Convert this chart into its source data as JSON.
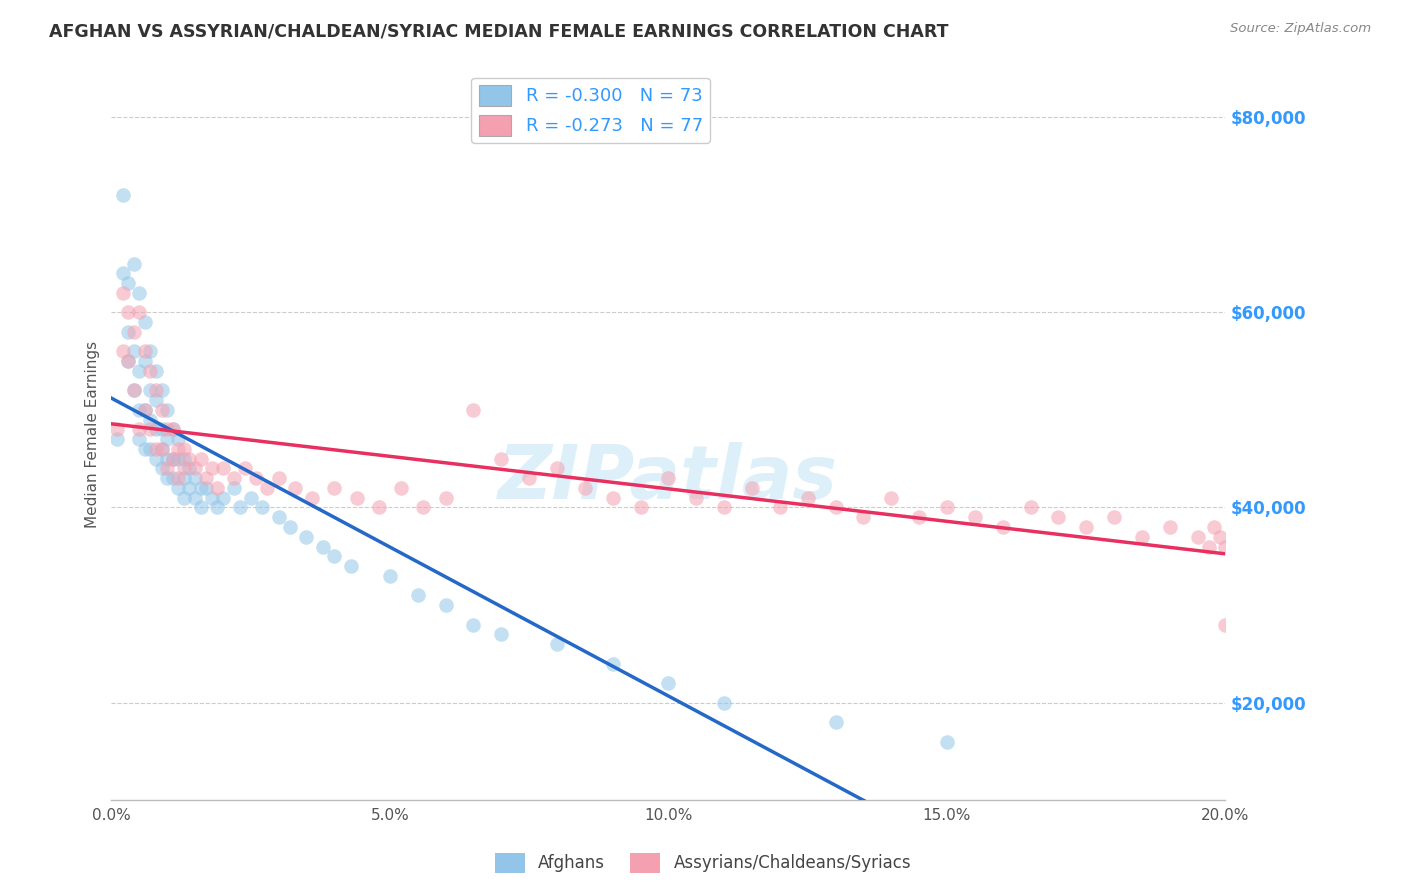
{
  "title": "AFGHAN VS ASSYRIAN/CHALDEAN/SYRIAC MEDIAN FEMALE EARNINGS CORRELATION CHART",
  "source": "Source: ZipAtlas.com",
  "ylabel": "Median Female Earnings",
  "xlim": [
    0.0,
    0.2
  ],
  "ylim": [
    10000,
    85000
  ],
  "xtick_labels": [
    "0.0%",
    "5.0%",
    "10.0%",
    "15.0%",
    "20.0%"
  ],
  "xtick_vals": [
    0.0,
    0.05,
    0.1,
    0.15,
    0.2
  ],
  "ytick_vals": [
    20000,
    40000,
    60000,
    80000
  ],
  "ytick_labels": [
    "$20,000",
    "$40,000",
    "$60,000",
    "$80,000"
  ],
  "watermark": "ZIPatlas",
  "legend_R_afghan": "-0.300",
  "legend_N_afghan": "73",
  "legend_R_assyrian": "-0.273",
  "legend_N_assyrian": "77",
  "color_afghan": "#92c5e8",
  "color_assyrian": "#f4a0b0",
  "line_color_afghan": "#2468c8",
  "line_color_assyrian": "#e83060",
  "background_color": "#ffffff",
  "grid_color": "#cccccc",
  "title_color": "#333333",
  "ytick_color": "#3399ff",
  "scatter_alpha": 0.55,
  "scatter_size": 110,
  "afghan_x": [
    0.001,
    0.002,
    0.002,
    0.003,
    0.003,
    0.003,
    0.004,
    0.004,
    0.004,
    0.005,
    0.005,
    0.005,
    0.005,
    0.006,
    0.006,
    0.006,
    0.006,
    0.007,
    0.007,
    0.007,
    0.007,
    0.008,
    0.008,
    0.008,
    0.008,
    0.009,
    0.009,
    0.009,
    0.009,
    0.01,
    0.01,
    0.01,
    0.01,
    0.011,
    0.011,
    0.011,
    0.012,
    0.012,
    0.012,
    0.013,
    0.013,
    0.013,
    0.014,
    0.014,
    0.015,
    0.015,
    0.016,
    0.016,
    0.017,
    0.018,
    0.019,
    0.02,
    0.022,
    0.023,
    0.025,
    0.027,
    0.03,
    0.032,
    0.035,
    0.038,
    0.04,
    0.043,
    0.05,
    0.055,
    0.06,
    0.065,
    0.07,
    0.08,
    0.09,
    0.1,
    0.11,
    0.13,
    0.15
  ],
  "afghan_y": [
    47000,
    72000,
    64000,
    63000,
    58000,
    55000,
    65000,
    56000,
    52000,
    62000,
    54000,
    50000,
    47000,
    59000,
    55000,
    50000,
    46000,
    56000,
    52000,
    49000,
    46000,
    54000,
    51000,
    48000,
    45000,
    52000,
    48000,
    46000,
    44000,
    50000,
    47000,
    45000,
    43000,
    48000,
    45000,
    43000,
    47000,
    45000,
    42000,
    45000,
    43000,
    41000,
    44000,
    42000,
    43000,
    41000,
    42000,
    40000,
    42000,
    41000,
    40000,
    41000,
    42000,
    40000,
    41000,
    40000,
    39000,
    38000,
    37000,
    36000,
    35000,
    34000,
    33000,
    31000,
    30000,
    28000,
    27000,
    26000,
    24000,
    22000,
    20000,
    18000,
    16000
  ],
  "assyrian_x": [
    0.001,
    0.002,
    0.002,
    0.003,
    0.003,
    0.004,
    0.004,
    0.005,
    0.005,
    0.006,
    0.006,
    0.007,
    0.007,
    0.008,
    0.008,
    0.009,
    0.009,
    0.01,
    0.01,
    0.011,
    0.011,
    0.012,
    0.012,
    0.013,
    0.013,
    0.014,
    0.015,
    0.016,
    0.017,
    0.018,
    0.019,
    0.02,
    0.022,
    0.024,
    0.026,
    0.028,
    0.03,
    0.033,
    0.036,
    0.04,
    0.044,
    0.048,
    0.052,
    0.056,
    0.06,
    0.065,
    0.07,
    0.075,
    0.08,
    0.085,
    0.09,
    0.095,
    0.1,
    0.105,
    0.11,
    0.115,
    0.12,
    0.125,
    0.13,
    0.135,
    0.14,
    0.145,
    0.15,
    0.155,
    0.16,
    0.165,
    0.17,
    0.175,
    0.18,
    0.185,
    0.19,
    0.195,
    0.197,
    0.198,
    0.199,
    0.2,
    0.2
  ],
  "assyrian_y": [
    48000,
    62000,
    56000,
    60000,
    55000,
    58000,
    52000,
    60000,
    48000,
    56000,
    50000,
    54000,
    48000,
    52000,
    46000,
    50000,
    46000,
    48000,
    44000,
    48000,
    45000,
    46000,
    43000,
    46000,
    44000,
    45000,
    44000,
    45000,
    43000,
    44000,
    42000,
    44000,
    43000,
    44000,
    43000,
    42000,
    43000,
    42000,
    41000,
    42000,
    41000,
    40000,
    42000,
    40000,
    41000,
    50000,
    45000,
    43000,
    44000,
    42000,
    41000,
    40000,
    43000,
    41000,
    40000,
    42000,
    40000,
    41000,
    40000,
    39000,
    41000,
    39000,
    40000,
    39000,
    38000,
    40000,
    39000,
    38000,
    39000,
    37000,
    38000,
    37000,
    36000,
    38000,
    37000,
    36000,
    28000
  ]
}
